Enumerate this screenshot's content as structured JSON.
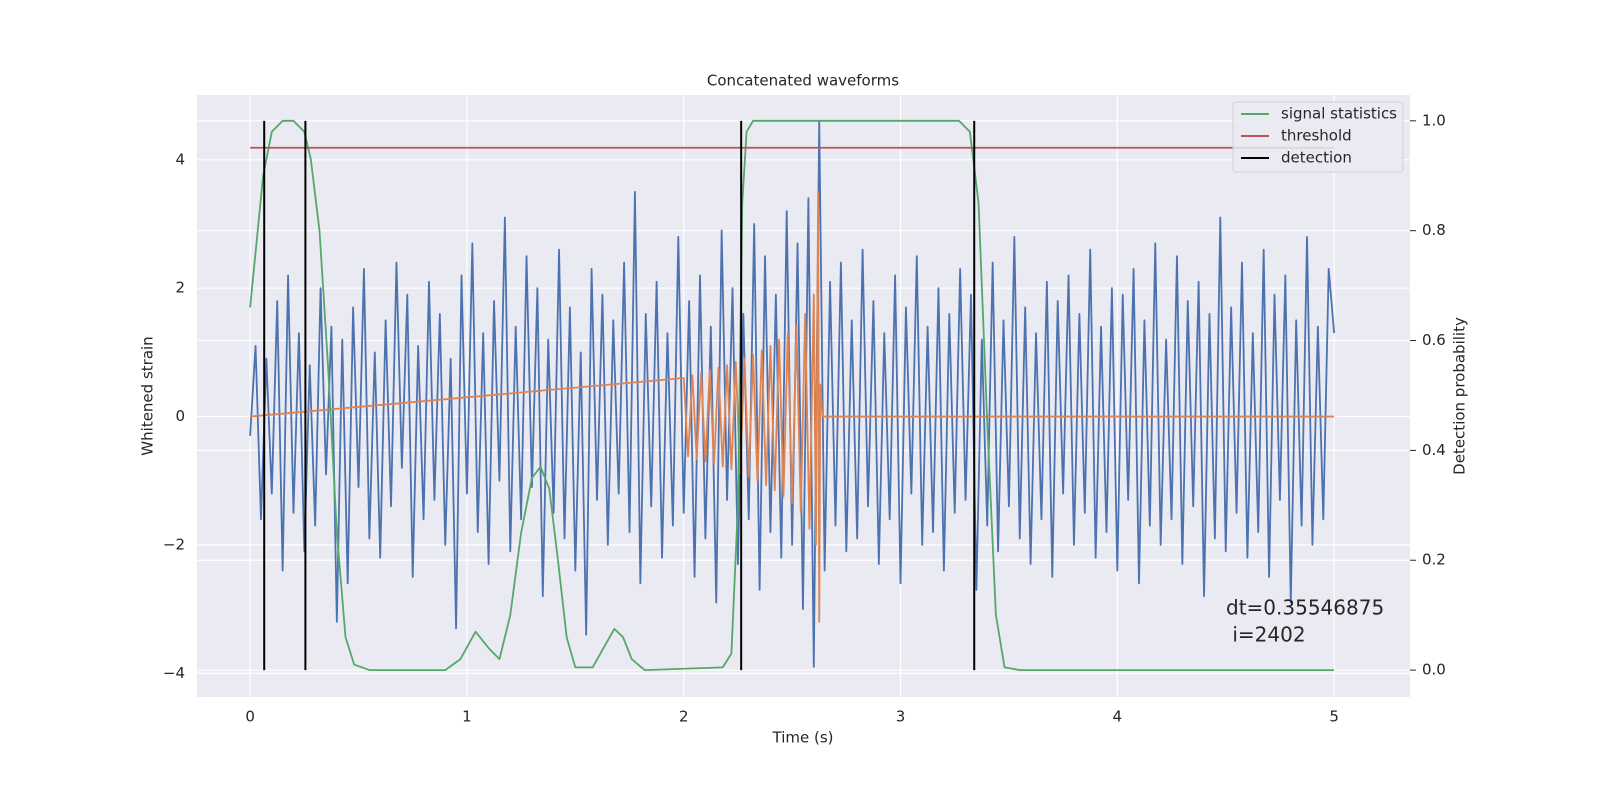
{
  "chart_data": {
    "type": "line",
    "title": "Concatenated waveforms",
    "xlabel": "Time (s)",
    "ylabel": "Whitened strain",
    "y2label": "Detection probability",
    "xlim": [
      -0.245,
      5.35
    ],
    "xticks": [
      0,
      1,
      2,
      3,
      4,
      5
    ],
    "ylim": [
      -4.37,
      5.01
    ],
    "yticks": [
      {
        "value": -4,
        "label": "−4"
      },
      {
        "value": -2,
        "label": "−2"
      },
      0,
      2,
      4
    ],
    "y2lim": [
      -0.049,
      1.047
    ],
    "y2ticks": [
      {
        "value": 0,
        "label": "0.0"
      },
      {
        "value": 0.2,
        "label": "0.2"
      },
      {
        "value": 0.4,
        "label": "0.4"
      },
      {
        "value": 0.6,
        "label": "0.6"
      },
      {
        "value": 0.8,
        "label": "0.8"
      },
      {
        "value": 1,
        "label": "1.0"
      }
    ],
    "grid": true,
    "legend": "upper right",
    "annotation": [
      "dt=0.35546875",
      " i=2402"
    ],
    "series": [
      {
        "color": "#4c72b0",
        "x": [
          0,
          0.025,
          0.05,
          0.075,
          0.1,
          0.125,
          0.15,
          0.175,
          0.2,
          0.225,
          0.25,
          0.275,
          0.3,
          0.325,
          0.35,
          0.375,
          0.4,
          0.425,
          0.45,
          0.475,
          0.5,
          0.525,
          0.55,
          0.575,
          0.6,
          0.625,
          0.65,
          0.675,
          0.7,
          0.725,
          0.75,
          0.775,
          0.8,
          0.825,
          0.85,
          0.875,
          0.9,
          0.925,
          0.95,
          0.975,
          1,
          1.025,
          1.05,
          1.075,
          1.1,
          1.125,
          1.15,
          1.175,
          1.2,
          1.225,
          1.25,
          1.275,
          1.3,
          1.325,
          1.35,
          1.375,
          1.4,
          1.425,
          1.45,
          1.475,
          1.5,
          1.525,
          1.55,
          1.575,
          1.6,
          1.625,
          1.65,
          1.675,
          1.7,
          1.725,
          1.75,
          1.775,
          1.8,
          1.825,
          1.85,
          1.875,
          1.9,
          1.925,
          1.95,
          1.975,
          2,
          2.025,
          2.05,
          2.075,
          2.1,
          2.125,
          2.15,
          2.175,
          2.2,
          2.225,
          2.25,
          2.275,
          2.3,
          2.325,
          2.35,
          2.375,
          2.4,
          2.425,
          2.45,
          2.475,
          2.5,
          2.525,
          2.55,
          2.575,
          2.6,
          2.625,
          2.65,
          2.675,
          2.7,
          2.725,
          2.75,
          2.775,
          2.8,
          2.825,
          2.85,
          2.875,
          2.9,
          2.925,
          2.95,
          2.975,
          3,
          3.025,
          3.05,
          3.075,
          3.1,
          3.125,
          3.15,
          3.175,
          3.2,
          3.225,
          3.25,
          3.275,
          3.3,
          3.325,
          3.35,
          3.375,
          3.4,
          3.425,
          3.45,
          3.475,
          3.5,
          3.525,
          3.55,
          3.575,
          3.6,
          3.625,
          3.65,
          3.675,
          3.7,
          3.725,
          3.75,
          3.775,
          3.8,
          3.825,
          3.85,
          3.875,
          3.9,
          3.925,
          3.95,
          3.975,
          4,
          4.025,
          4.05,
          4.075,
          4.1,
          4.125,
          4.15,
          4.175,
          4.2,
          4.225,
          4.25,
          4.275,
          4.3,
          4.325,
          4.35,
          4.375,
          4.4,
          4.425,
          4.45,
          4.475,
          4.5,
          4.525,
          4.55,
          4.575,
          4.6,
          4.625,
          4.65,
          4.675,
          4.7,
          4.725,
          4.75,
          4.775,
          4.8,
          4.825,
          4.85,
          4.875,
          4.9,
          4.925,
          4.95,
          4.975,
          5
        ],
        "values": [
          -0.3,
          1.1,
          -1.6,
          0.9,
          -1.2,
          1.8,
          -2.4,
          2.2,
          -1.5,
          1.3,
          -2.1,
          0.8,
          -1.7,
          2.0,
          -0.9,
          1.4,
          -3.2,
          1.2,
          -2.6,
          1.7,
          -1.1,
          2.3,
          -1.9,
          1.0,
          -2.2,
          1.5,
          -1.4,
          2.4,
          -0.8,
          1.9,
          -2.5,
          1.1,
          -1.6,
          2.1,
          -1.3,
          1.6,
          -2.0,
          0.9,
          -3.3,
          2.2,
          -1.2,
          2.7,
          -1.8,
          1.3,
          -2.3,
          1.8,
          -1.0,
          3.1,
          -2.1,
          1.4,
          -1.6,
          2.5,
          -1.1,
          2.0,
          -2.8,
          1.2,
          -1.5,
          2.6,
          -1.9,
          1.7,
          -2.4,
          1.0,
          -3.4,
          2.3,
          -1.3,
          1.9,
          -2.0,
          1.5,
          -1.2,
          2.4,
          -1.8,
          3.5,
          -2.6,
          1.6,
          -1.4,
          2.1,
          -2.2,
          1.3,
          -1.7,
          2.8,
          -1.5,
          1.8,
          -2.5,
          2.2,
          -1.9,
          1.4,
          -2.9,
          2.9,
          -1.3,
          2.0,
          -2.3,
          1.6,
          -1.6,
          3.0,
          -2.7,
          2.5,
          -1.8,
          1.9,
          -2.2,
          3.2,
          -2.0,
          2.7,
          -3.0,
          3.4,
          -3.9,
          4.6,
          -2.4,
          2.1,
          -1.7,
          2.4,
          -2.1,
          1.5,
          -1.9,
          2.6,
          -1.4,
          1.8,
          -2.3,
          1.3,
          -1.6,
          2.2,
          -2.6,
          1.7,
          -1.2,
          2.5,
          -2.0,
          1.4,
          -1.8,
          2.0,
          -2.4,
          1.6,
          -1.5,
          2.3,
          -1.3,
          1.9,
          -2.7,
          1.2,
          -1.7,
          2.4,
          -2.1,
          1.5,
          -1.4,
          2.8,
          -1.9,
          1.7,
          -2.3,
          1.3,
          -1.6,
          2.1,
          -2.5,
          1.8,
          -1.2,
          2.2,
          -2.0,
          1.6,
          -1.5,
          2.6,
          -2.2,
          1.4,
          -1.8,
          2.0,
          -2.4,
          1.9,
          -1.3,
          2.3,
          -2.6,
          1.5,
          -1.7,
          2.7,
          -2.0,
          1.2,
          -1.6,
          2.5,
          -2.3,
          1.8,
          -1.4,
          2.1,
          -2.8,
          1.6,
          -1.9,
          3.1,
          -2.1,
          1.7,
          -1.5,
          2.4,
          -2.2,
          1.3,
          -1.8,
          2.6,
          -2.5,
          1.9,
          -1.3,
          2.2,
          -2.9,
          1.5,
          -1.7,
          2.8,
          -2.0,
          1.4,
          -1.6,
          2.3,
          1.3
        ]
      },
      {
        "color": "#dd8452",
        "x": [
          0,
          2.0,
          2.02,
          2.04,
          2.06,
          2.08,
          2.1,
          2.12,
          2.14,
          2.16,
          2.18,
          2.2,
          2.22,
          2.24,
          2.26,
          2.28,
          2.3,
          2.32,
          2.34,
          2.36,
          2.38,
          2.4,
          2.42,
          2.44,
          2.46,
          2.48,
          2.5,
          2.52,
          2.54,
          2.56,
          2.58,
          2.6,
          2.61,
          2.62,
          2.625,
          2.63,
          2.64,
          5
        ],
        "values": [
          0,
          0.6,
          -0.62,
          0.64,
          -0.66,
          0.68,
          -0.7,
          0.72,
          -0.74,
          0.76,
          -0.78,
          0.8,
          -0.82,
          0.85,
          -0.88,
          0.9,
          -0.93,
          0.96,
          -1.0,
          1.03,
          -1.07,
          1.1,
          -1.15,
          1.2,
          -1.25,
          1.3,
          -1.35,
          1.42,
          -1.5,
          1.6,
          -1.75,
          1.9,
          -2.0,
          3.5,
          -3.2,
          0.5,
          0,
          0
        ]
      },
      {
        "name": "signal statistics",
        "color": "#55a868",
        "axis": "y2",
        "x": [
          0,
          0.03,
          0.06,
          0.1,
          0.15,
          0.2,
          0.25,
          0.28,
          0.32,
          0.36,
          0.4,
          0.44,
          0.48,
          0.55,
          0.9,
          0.97,
          1.04,
          1.1,
          1.15,
          1.2,
          1.25,
          1.3,
          1.34,
          1.38,
          1.42,
          1.46,
          1.5,
          1.58,
          1.63,
          1.68,
          1.72,
          1.76,
          1.82,
          2.18,
          2.22,
          2.25,
          2.27,
          2.29,
          2.32,
          3.27,
          3.32,
          3.36,
          3.4,
          3.44,
          3.48,
          3.55,
          5.0
        ],
        "values": [
          0.66,
          0.78,
          0.9,
          0.98,
          1.0,
          1.0,
          0.98,
          0.93,
          0.8,
          0.55,
          0.25,
          0.06,
          0.01,
          0.0,
          0.0,
          0.02,
          0.07,
          0.04,
          0.02,
          0.1,
          0.25,
          0.35,
          0.37,
          0.33,
          0.2,
          0.06,
          0.005,
          0.005,
          0.04,
          0.075,
          0.06,
          0.02,
          0.0,
          0.005,
          0.03,
          0.3,
          0.85,
          0.98,
          1.0,
          1.0,
          0.98,
          0.85,
          0.45,
          0.1,
          0.005,
          0.0,
          0.0
        ]
      },
      {
        "name": "threshold",
        "color": "#c44e52",
        "axis": "y2",
        "x": [
          0,
          5
        ],
        "values": [
          0.951,
          0.951
        ]
      }
    ],
    "detection": {
      "name": "detection",
      "color": "#000000",
      "x": [
        0.065,
        0.255,
        2.265,
        3.34
      ]
    }
  }
}
